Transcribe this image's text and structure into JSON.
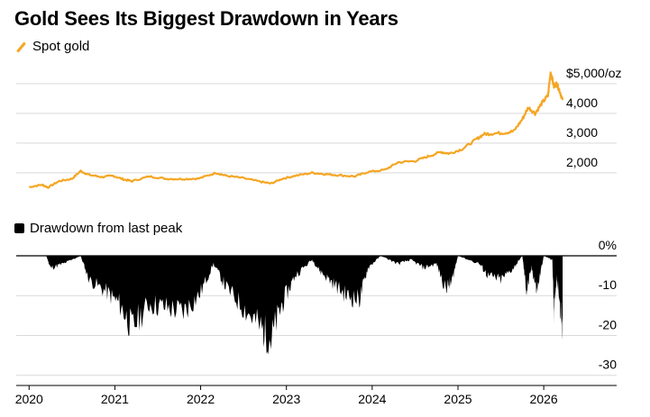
{
  "title": "Gold Sees Its Biggest Drawdown in Years",
  "legend": {
    "gold_series": "Spot gold",
    "drawdown_series": "Drawdown from last peak"
  },
  "colors": {
    "gold": "#f5a623",
    "drawdown": "#000000",
    "grid": "#d9d9d9"
  },
  "icons": {
    "gold_legend": "orange-line-icon",
    "drawdown_legend": "black-square-icon"
  },
  "chart_data": [
    {
      "type": "line",
      "series_name": "Spot gold",
      "ylim": [
        1300,
        5450
      ],
      "yticks": [
        2000,
        3000,
        4000,
        5000
      ],
      "ytick_labels": [
        "2,000",
        "3,000",
        "4,000",
        "$5,000/oz"
      ],
      "grid": true,
      "points": [
        [
          2020.0,
          1520
        ],
        [
          2020.15,
          1600
        ],
        [
          2020.22,
          1510
        ],
        [
          2020.35,
          1720
        ],
        [
          2020.5,
          1800
        ],
        [
          2020.6,
          2060
        ],
        [
          2020.7,
          1930
        ],
        [
          2020.85,
          1860
        ],
        [
          2020.98,
          1900
        ],
        [
          2021.1,
          1780
        ],
        [
          2021.2,
          1720
        ],
        [
          2021.4,
          1880
        ],
        [
          2021.6,
          1800
        ],
        [
          2021.8,
          1790
        ],
        [
          2021.98,
          1810
        ],
        [
          2022.18,
          2000
        ],
        [
          2022.3,
          1900
        ],
        [
          2022.5,
          1820
        ],
        [
          2022.7,
          1700
        ],
        [
          2022.82,
          1640
        ],
        [
          2022.95,
          1800
        ],
        [
          2023.1,
          1900
        ],
        [
          2023.3,
          2000
        ],
        [
          2023.45,
          1960
        ],
        [
          2023.6,
          1920
        ],
        [
          2023.8,
          1880
        ],
        [
          2023.95,
          2030
        ],
        [
          2024.15,
          2100
        ],
        [
          2024.3,
          2350
        ],
        [
          2024.5,
          2400
        ],
        [
          2024.65,
          2550
        ],
        [
          2024.8,
          2700
        ],
        [
          2024.9,
          2650
        ],
        [
          2025.05,
          2800
        ],
        [
          2025.2,
          3100
        ],
        [
          2025.3,
          3300
        ],
        [
          2025.4,
          3320
        ],
        [
          2025.55,
          3350
        ],
        [
          2025.65,
          3400
        ],
        [
          2025.75,
          3800
        ],
        [
          2025.82,
          4200
        ],
        [
          2025.9,
          4000
        ],
        [
          2025.98,
          4350
        ],
        [
          2026.05,
          4600
        ],
        [
          2026.08,
          5400
        ],
        [
          2026.12,
          4900
        ],
        [
          2026.15,
          5000
        ],
        [
          2026.18,
          4800
        ],
        [
          2026.22,
          4450
        ]
      ]
    },
    {
      "type": "area",
      "series_name": "Drawdown from last peak",
      "ylim": [
        -33,
        0
      ],
      "yticks": [
        0,
        -10,
        -20,
        -30
      ],
      "ytick_labels": [
        "0%",
        "-10",
        "-20",
        "-30"
      ],
      "grid": true,
      "points": [
        [
          2020.0,
          0
        ],
        [
          2020.2,
          0
        ],
        [
          2020.25,
          -3
        ],
        [
          2020.4,
          -2
        ],
        [
          2020.6,
          0
        ],
        [
          2020.7,
          -6
        ],
        [
          2020.9,
          -9
        ],
        [
          2021.05,
          -12
        ],
        [
          2021.2,
          -18
        ],
        [
          2021.4,
          -12
        ],
        [
          2021.6,
          -13
        ],
        [
          2021.8,
          -14
        ],
        [
          2021.98,
          -10
        ],
        [
          2022.15,
          -2
        ],
        [
          2022.3,
          -8
        ],
        [
          2022.5,
          -13
        ],
        [
          2022.7,
          -18
        ],
        [
          2022.82,
          -21
        ],
        [
          2022.95,
          -12
        ],
        [
          2023.1,
          -5
        ],
        [
          2023.3,
          -1
        ],
        [
          2023.4,
          -4
        ],
        [
          2023.55,
          -7
        ],
        [
          2023.7,
          -10
        ],
        [
          2023.85,
          -11
        ],
        [
          2023.95,
          -3
        ],
        [
          2024.1,
          0
        ],
        [
          2024.3,
          -2
        ],
        [
          2024.45,
          -1
        ],
        [
          2024.6,
          -3
        ],
        [
          2024.75,
          -2
        ],
        [
          2024.85,
          -8
        ],
        [
          2024.92,
          -7
        ],
        [
          2025.0,
          0
        ],
        [
          2025.25,
          -2
        ],
        [
          2025.35,
          -5
        ],
        [
          2025.5,
          -6
        ],
        [
          2025.65,
          -3
        ],
        [
          2025.75,
          0
        ],
        [
          2025.8,
          -9
        ],
        [
          2025.86,
          -3
        ],
        [
          2025.92,
          -9
        ],
        [
          2026.0,
          0
        ],
        [
          2026.1,
          -1
        ],
        [
          2026.12,
          -14
        ],
        [
          2026.15,
          -5
        ],
        [
          2026.18,
          -10
        ],
        [
          2026.22,
          -19
        ]
      ]
    }
  ],
  "x_axis": {
    "range": [
      2019.85,
      2026.85
    ],
    "ticks": [
      2020,
      2021,
      2022,
      2023,
      2024,
      2025,
      2026
    ],
    "labels": [
      "2020",
      "2021",
      "2022",
      "2023",
      "2024",
      "2025",
      "2026"
    ]
  }
}
